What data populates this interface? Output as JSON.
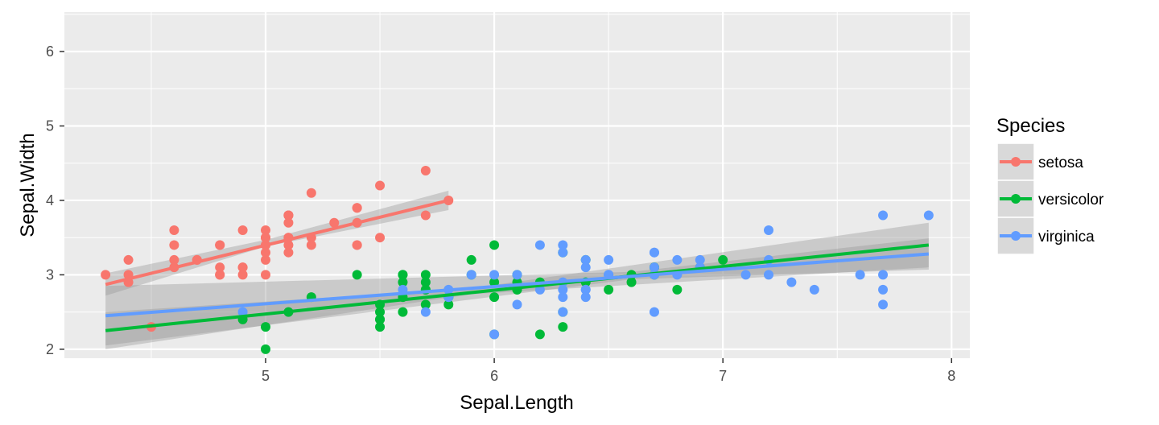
{
  "chart_data": {
    "type": "scatter",
    "xlabel": "Sepal.Length",
    "ylabel": "Sepal.Width",
    "xlim": [
      4.12,
      8.08
    ],
    "ylim": [
      1.88,
      6.53
    ],
    "x_ticks": [
      5,
      6,
      7,
      8
    ],
    "y_ticks": [
      2,
      3,
      4,
      5,
      6
    ],
    "grid": true,
    "smoothing": "linear regression with confidence band",
    "legend": {
      "title": "Species",
      "placement": "right"
    },
    "colors": {
      "panel": "#ebebeb",
      "grid": "#ffffff",
      "band": "#999999"
    },
    "series": [
      {
        "name": "setosa",
        "color": "#F8766D",
        "fit": {
          "x": [
            4.3,
            5.8
          ],
          "y": [
            2.87,
            4.0
          ]
        },
        "band": {
          "x": [
            4.3,
            5.0,
            5.8
          ],
          "lower": [
            2.72,
            3.38,
            3.87
          ],
          "upper": [
            3.02,
            3.47,
            4.13
          ]
        },
        "points": [
          [
            5.1,
            3.5
          ],
          [
            4.9,
            3.0
          ],
          [
            4.7,
            3.2
          ],
          [
            4.6,
            3.1
          ],
          [
            5.0,
            3.6
          ],
          [
            5.4,
            3.9
          ],
          [
            4.6,
            3.4
          ],
          [
            5.0,
            3.4
          ],
          [
            4.4,
            2.9
          ],
          [
            4.9,
            3.1
          ],
          [
            5.4,
            3.7
          ],
          [
            4.8,
            3.4
          ],
          [
            4.8,
            3.0
          ],
          [
            4.3,
            3.0
          ],
          [
            5.8,
            4.0
          ],
          [
            5.7,
            4.4
          ],
          [
            5.4,
            3.9
          ],
          [
            5.1,
            3.5
          ],
          [
            5.7,
            3.8
          ],
          [
            5.1,
            3.8
          ],
          [
            5.4,
            3.4
          ],
          [
            5.1,
            3.7
          ],
          [
            4.6,
            3.6
          ],
          [
            5.1,
            3.3
          ],
          [
            4.8,
            3.4
          ],
          [
            5.0,
            3.0
          ],
          [
            5.0,
            3.4
          ],
          [
            5.2,
            3.5
          ],
          [
            5.2,
            3.4
          ],
          [
            4.7,
            3.2
          ],
          [
            4.8,
            3.1
          ],
          [
            5.4,
            3.4
          ],
          [
            5.2,
            4.1
          ],
          [
            5.5,
            4.2
          ],
          [
            4.9,
            3.1
          ],
          [
            5.0,
            3.2
          ],
          [
            5.5,
            3.5
          ],
          [
            4.9,
            3.6
          ],
          [
            4.4,
            3.0
          ],
          [
            5.1,
            3.4
          ],
          [
            5.0,
            3.5
          ],
          [
            4.5,
            2.3
          ],
          [
            4.4,
            3.2
          ],
          [
            5.0,
            3.5
          ],
          [
            5.1,
            3.8
          ],
          [
            4.8,
            3.0
          ],
          [
            5.1,
            3.8
          ],
          [
            4.6,
            3.2
          ],
          [
            5.3,
            3.7
          ],
          [
            5.0,
            3.3
          ]
        ]
      },
      {
        "name": "versicolor",
        "color": "#00BA38",
        "fit": {
          "x": [
            4.3,
            7.9
          ],
          "y": [
            2.25,
            3.4
          ]
        },
        "band": {
          "x": [
            4.3,
            5.9,
            7.9
          ],
          "lower": [
            2.0,
            2.74,
            3.1
          ],
          "upper": [
            2.5,
            2.82,
            3.7
          ]
        },
        "points": [
          [
            7.0,
            3.2
          ],
          [
            6.4,
            3.2
          ],
          [
            6.9,
            3.1
          ],
          [
            5.5,
            2.3
          ],
          [
            6.5,
            2.8
          ],
          [
            5.7,
            2.8
          ],
          [
            6.3,
            3.3
          ],
          [
            4.9,
            2.4
          ],
          [
            6.6,
            2.9
          ],
          [
            5.2,
            2.7
          ],
          [
            5.0,
            2.0
          ],
          [
            5.9,
            3.0
          ],
          [
            6.0,
            2.2
          ],
          [
            6.1,
            2.9
          ],
          [
            5.6,
            2.9
          ],
          [
            6.7,
            3.1
          ],
          [
            5.6,
            3.0
          ],
          [
            5.8,
            2.7
          ],
          [
            6.2,
            2.2
          ],
          [
            5.6,
            2.5
          ],
          [
            5.9,
            3.2
          ],
          [
            6.1,
            2.8
          ],
          [
            6.3,
            2.5
          ],
          [
            6.1,
            2.8
          ],
          [
            6.4,
            2.9
          ],
          [
            6.6,
            3.0
          ],
          [
            6.8,
            2.8
          ],
          [
            6.7,
            3.0
          ],
          [
            6.0,
            2.9
          ],
          [
            5.7,
            2.6
          ],
          [
            5.5,
            2.4
          ],
          [
            5.5,
            2.4
          ],
          [
            5.8,
            2.7
          ],
          [
            6.0,
            2.7
          ],
          [
            5.4,
            3.0
          ],
          [
            6.0,
            3.4
          ],
          [
            6.7,
            3.1
          ],
          [
            6.3,
            2.3
          ],
          [
            5.6,
            3.0
          ],
          [
            5.5,
            2.5
          ],
          [
            5.5,
            2.6
          ],
          [
            6.1,
            3.0
          ],
          [
            5.8,
            2.6
          ],
          [
            5.0,
            2.3
          ],
          [
            5.6,
            2.7
          ],
          [
            5.7,
            3.0
          ],
          [
            5.7,
            2.9
          ],
          [
            6.2,
            2.9
          ],
          [
            5.1,
            2.5
          ],
          [
            5.7,
            2.8
          ]
        ]
      },
      {
        "name": "virginica",
        "color": "#619CFF",
        "fit": {
          "x": [
            4.3,
            7.9
          ],
          "y": [
            2.45,
            3.28
          ]
        },
        "band": {
          "x": [
            4.3,
            6.6,
            7.9
          ],
          "lower": [
            2.05,
            2.94,
            3.07
          ],
          "upper": [
            2.85,
            3.04,
            3.49
          ]
        },
        "points": [
          [
            6.3,
            3.3
          ],
          [
            5.8,
            2.7
          ],
          [
            7.1,
            3.0
          ],
          [
            6.3,
            2.9
          ],
          [
            6.5,
            3.0
          ],
          [
            7.6,
            3.0
          ],
          [
            4.9,
            2.5
          ],
          [
            7.3,
            2.9
          ],
          [
            6.7,
            2.5
          ],
          [
            7.2,
            3.6
          ],
          [
            6.5,
            3.2
          ],
          [
            6.4,
            2.7
          ],
          [
            6.8,
            3.0
          ],
          [
            5.7,
            2.5
          ],
          [
            5.8,
            2.8
          ],
          [
            6.4,
            3.2
          ],
          [
            6.5,
            3.0
          ],
          [
            7.7,
            3.8
          ],
          [
            7.7,
            2.6
          ],
          [
            6.0,
            2.2
          ],
          [
            6.9,
            3.2
          ],
          [
            5.6,
            2.8
          ],
          [
            7.7,
            2.8
          ],
          [
            6.3,
            2.7
          ],
          [
            6.7,
            3.3
          ],
          [
            7.2,
            3.2
          ],
          [
            6.2,
            2.8
          ],
          [
            6.1,
            3.0
          ],
          [
            6.4,
            2.8
          ],
          [
            7.2,
            3.0
          ],
          [
            7.4,
            2.8
          ],
          [
            7.9,
            3.8
          ],
          [
            6.4,
            2.8
          ],
          [
            6.3,
            2.8
          ],
          [
            6.1,
            2.6
          ],
          [
            7.7,
            3.0
          ],
          [
            6.3,
            3.4
          ],
          [
            6.4,
            3.1
          ],
          [
            6.0,
            3.0
          ],
          [
            6.9,
            3.1
          ],
          [
            6.7,
            3.1
          ],
          [
            6.9,
            3.1
          ],
          [
            5.8,
            2.7
          ],
          [
            6.8,
            3.2
          ],
          [
            6.7,
            3.3
          ],
          [
            6.7,
            3.0
          ],
          [
            6.3,
            2.5
          ],
          [
            6.5,
            3.0
          ],
          [
            6.2,
            3.4
          ],
          [
            5.9,
            3.0
          ]
        ]
      }
    ]
  }
}
